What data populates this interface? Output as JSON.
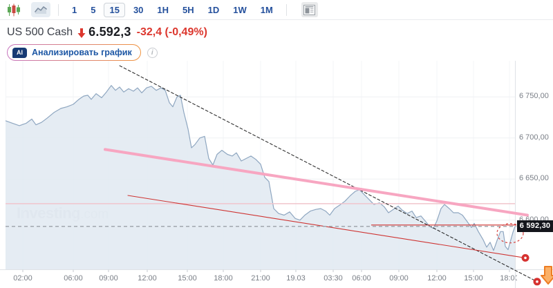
{
  "toolbar": {
    "timeframes": [
      "1",
      "5",
      "15",
      "30",
      "1H",
      "5H",
      "1D",
      "1W",
      "1M"
    ],
    "active_timeframe": "15",
    "icons": {
      "chart_style": "candlestick-icon",
      "chart_type": "area-chart-icon",
      "panel": "news-panel-icon"
    }
  },
  "header": {
    "symbol": "US 500 Cash",
    "direction": "down",
    "price": "6.592,3",
    "change": "-32,4 (-0,49%)"
  },
  "ai": {
    "badge": "AI",
    "label": "Анализировать график"
  },
  "watermark": {
    "bold": "Investing",
    "light": ".com"
  },
  "colors": {
    "accent_red": "#dc372e",
    "navy": "#24509c",
    "grid": "#eff1f4",
    "grid_v": "#f3f5f7",
    "area_fill": "#e2eaf2",
    "area_line": "#8ea6c0",
    "axis_border": "#dfe2e6",
    "axis_text": "#797e86",
    "dashed_line": "#9aa0a7",
    "dot_red": "#d63230",
    "price_label_bg": "#14161c"
  },
  "chart_data": {
    "type": "area",
    "title": "US 500 Cash, 15 min",
    "ylabel": "",
    "xlabel": "",
    "ylim": [
      6540,
      6794
    ],
    "legend": false,
    "grid": true,
    "plot": {
      "x_min": 8,
      "x_max": 745,
      "y_top": 88,
      "y_bottom": 390
    },
    "y_ticks": [
      {
        "label": "6 750,00",
        "value": 6750
      },
      {
        "label": "6 700,00",
        "value": 6700
      },
      {
        "label": "6 650,00",
        "value": 6650
      },
      {
        "label": "6 600,00",
        "value": 6600
      }
    ],
    "x_ticks": [
      {
        "label": "02:00",
        "x": 33
      },
      {
        "label": "06:00",
        "x": 106
      },
      {
        "label": "09:00",
        "x": 157
      },
      {
        "label": "12:00",
        "x": 213
      },
      {
        "label": "15:00",
        "x": 271
      },
      {
        "label": "18:00",
        "x": 323
      },
      {
        "label": "21:00",
        "x": 377
      },
      {
        "label": "19.03",
        "x": 428
      },
      {
        "label": "03:30",
        "x": 482
      },
      {
        "label": "06:00",
        "x": 523
      },
      {
        "label": "09:00",
        "x": 577
      },
      {
        "label": "12:00",
        "x": 632
      },
      {
        "label": "15:00",
        "x": 685
      },
      {
        "label": "18:00",
        "x": 737
      }
    ],
    "series": [
      [
        8,
        6721
      ],
      [
        18,
        6718
      ],
      [
        28,
        6715
      ],
      [
        38,
        6718
      ],
      [
        46,
        6723
      ],
      [
        52,
        6716
      ],
      [
        60,
        6719
      ],
      [
        68,
        6724
      ],
      [
        78,
        6731
      ],
      [
        88,
        6736
      ],
      [
        97,
        6738
      ],
      [
        106,
        6741
      ],
      [
        114,
        6747
      ],
      [
        121,
        6751
      ],
      [
        127,
        6752
      ],
      [
        132,
        6747
      ],
      [
        139,
        6754
      ],
      [
        147,
        6749
      ],
      [
        154,
        6756
      ],
      [
        161,
        6764
      ],
      [
        167,
        6758
      ],
      [
        173,
        6762
      ],
      [
        179,
        6756
      ],
      [
        186,
        6760
      ],
      [
        193,
        6757
      ],
      [
        199,
        6761
      ],
      [
        205,
        6755
      ],
      [
        212,
        6761
      ],
      [
        219,
        6763
      ],
      [
        226,
        6758
      ],
      [
        233,
        6761
      ],
      [
        239,
        6758
      ],
      [
        245,
        6743
      ],
      [
        250,
        6738
      ],
      [
        256,
        6750
      ],
      [
        261,
        6752
      ],
      [
        266,
        6731
      ],
      [
        272,
        6711
      ],
      [
        277,
        6688
      ],
      [
        282,
        6692
      ],
      [
        289,
        6700
      ],
      [
        296,
        6702
      ],
      [
        302,
        6675
      ],
      [
        308,
        6667
      ],
      [
        314,
        6680
      ],
      [
        321,
        6685
      ],
      [
        329,
        6680
      ],
      [
        336,
        6678
      ],
      [
        342,
        6682
      ],
      [
        349,
        6672
      ],
      [
        356,
        6675
      ],
      [
        363,
        6678
      ],
      [
        370,
        6674
      ],
      [
        377,
        6668
      ],
      [
        383,
        6652
      ],
      [
        389,
        6647
      ],
      [
        396,
        6614
      ],
      [
        403,
        6608
      ],
      [
        411,
        6606
      ],
      [
        419,
        6610
      ],
      [
        427,
        6602
      ],
      [
        434,
        6600
      ],
      [
        441,
        6606
      ],
      [
        449,
        6611
      ],
      [
        457,
        6613
      ],
      [
        464,
        6614
      ],
      [
        471,
        6611
      ],
      [
        477,
        6606
      ],
      [
        484,
        6614
      ],
      [
        491,
        6618
      ],
      [
        499,
        6623
      ],
      [
        507,
        6630
      ],
      [
        514,
        6635
      ],
      [
        520,
        6637
      ],
      [
        527,
        6631
      ],
      [
        534,
        6625
      ],
      [
        541,
        6619
      ],
      [
        549,
        6621
      ],
      [
        556,
        6616
      ],
      [
        562,
        6609
      ],
      [
        569,
        6613
      ],
      [
        576,
        6617
      ],
      [
        582,
        6612
      ],
      [
        589,
        6608
      ],
      [
        596,
        6611
      ],
      [
        602,
        6603
      ],
      [
        609,
        6605
      ],
      [
        616,
        6598
      ],
      [
        622,
        6592
      ],
      [
        627,
        6590
      ],
      [
        632,
        6599
      ],
      [
        638,
        6614
      ],
      [
        643,
        6619
      ],
      [
        650,
        6614
      ],
      [
        656,
        6609
      ],
      [
        663,
        6609
      ],
      [
        669,
        6606
      ],
      [
        676,
        6598
      ],
      [
        682,
        6591
      ],
      [
        686,
        6596
      ],
      [
        692,
        6586
      ],
      [
        699,
        6576
      ],
      [
        704,
        6567
      ],
      [
        709,
        6573
      ],
      [
        714,
        6563
      ],
      [
        719,
        6575
      ],
      [
        724,
        6586
      ],
      [
        728,
        6586
      ],
      [
        731,
        6568
      ],
      [
        735,
        6564
      ],
      [
        739,
        6576
      ],
      [
        742,
        6585
      ],
      [
        745,
        6592.3
      ]
    ],
    "current_price_line": {
      "price": 6592.3,
      "label": "6 592,30",
      "color": "#9aa0a7",
      "dash": "5,4"
    },
    "trendlines": [
      {
        "id": "black-trendline",
        "x1": 173,
        "p1": 6788,
        "x2": 777,
        "p2": 6525,
        "color": "#1b1b1b",
        "width": 1,
        "dash": "4,3",
        "end_dot": true
      },
      {
        "id": "pink-trendline",
        "x1": 152,
        "p1": 6686,
        "x2": 763,
        "p2": 6606,
        "color": "#f7a6c1",
        "width": 4,
        "dash": "",
        "end_dot": false
      },
      {
        "id": "red-trendline",
        "x1": 185,
        "p1": 6630,
        "x2": 760,
        "p2": 6554,
        "color": "#ce3331",
        "width": 1.1,
        "dash": "",
        "end_dot": true
      }
    ],
    "horizontal_lines": [
      {
        "id": "pink-horizontal-line",
        "price": 6620,
        "x1": 8,
        "x2": 745,
        "color": "#f0c4cc",
        "width": 1.5
      },
      {
        "id": "red-horizontal-line",
        "price": 6594,
        "x1": 537,
        "x2": 747,
        "color": "#ce2e2c",
        "width": 1.2
      }
    ],
    "ellipse": {
      "cx": 738,
      "cy_price": 6584,
      "rx": 19,
      "ry": 14,
      "color": "#d64541"
    },
    "arrow_marker": {
      "x": 793,
      "y": 386,
      "fill": "#fbb066",
      "stroke": "#ed7d23"
    }
  }
}
